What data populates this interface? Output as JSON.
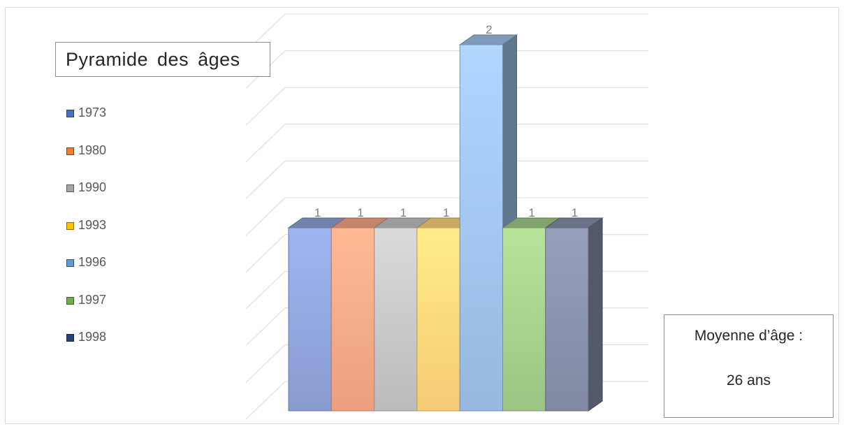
{
  "chart_data": {
    "type": "bar",
    "variant": "3d-clustered-column",
    "title": "Pyramide des âges",
    "categories": [
      "1973",
      "1980",
      "1990",
      "1993",
      "1996",
      "1997",
      "1998"
    ],
    "series": [
      {
        "values": [
          1,
          1,
          1,
          1,
          2,
          1,
          1
        ],
        "colors": [
          "#8ea2d8",
          "#f5a684",
          "#c3c3c3",
          "#ffd37a",
          "#9dc0e8",
          "#a3cc89",
          "#868fa9"
        ]
      }
    ],
    "data_labels": [
      "1",
      "1",
      "1",
      "1",
      "2",
      "1",
      "1"
    ],
    "ylim": [
      0,
      2
    ],
    "grid": true,
    "legend_position": "left",
    "axis_labels_visible": false
  },
  "legend": {
    "items": [
      {
        "label": "1973",
        "color": "#4472c4"
      },
      {
        "label": "1980",
        "color": "#ed7d31"
      },
      {
        "label": "1990",
        "color": "#a5a5a5"
      },
      {
        "label": "1993",
        "color": "#ffc000"
      },
      {
        "label": "1996",
        "color": "#5b9bd5"
      },
      {
        "label": "1997",
        "color": "#70ad47"
      },
      {
        "label": "1998",
        "color": "#264478"
      }
    ]
  },
  "average_box": {
    "label": "Moyenne d’âge :",
    "value": "26 ans"
  }
}
